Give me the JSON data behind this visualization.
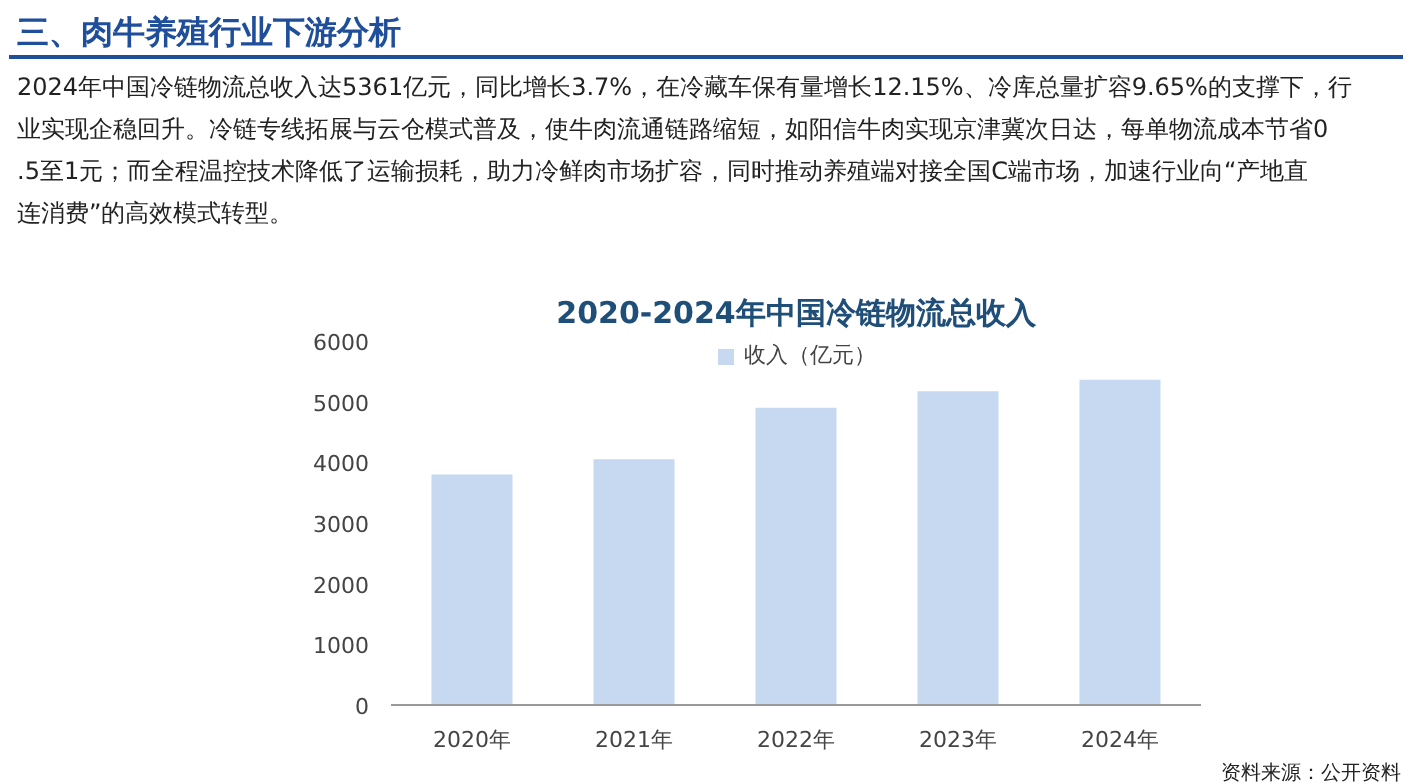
{
  "chart_data": {
    "type": "bar",
    "title": "2020-2024年中国冷链物流总收入",
    "annotations": [
      "三、肉牛养殖行业下游分析",
      "2024年中国冷链物流总收入达5361亿元，同比增长3.7%，在冷藏车保有量增长12.15%、冷库总量扩容9.65%的支撑下，行业实现企稳回升。冷链专线拓展与云仓模式普及，使牛肉流通链路缩短，如阳信牛肉实现京津冀次日达，每单物流成本节省0.5至1元；而全程温控技术降低了运输损耗，助力冷鲜肉市场扩容，同时推动养殖端对接全国C端市场，加速行业向“产地直连消费”的高效模式转型。",
      "资料来源：公开资料"
    ],
    "categories": [
      "2020年",
      "2021年",
      "2022年",
      "2023年",
      "2024年"
    ],
    "series": [
      {
        "name": "收入（亿元）",
        "color": "#c6d9f0",
        "values": [
          3800,
          4050,
          4900,
          5170,
          5361
        ]
      }
    ],
    "ylim": [
      0,
      6000
    ],
    "yticks": [
      0,
      1000,
      2000,
      3000,
      4000,
      5000,
      6000
    ],
    "grid": false,
    "legend": "top"
  }
}
